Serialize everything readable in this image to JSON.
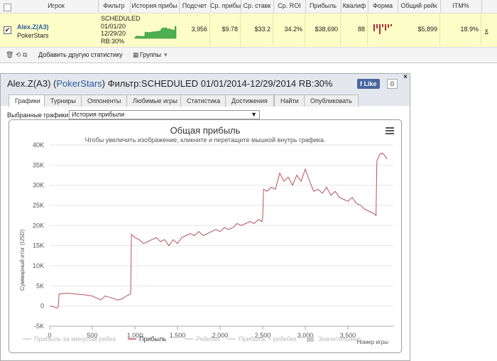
{
  "table": {
    "columns": [
      "Игрок",
      "Фильтр",
      "История прибы",
      "Подсчет",
      "Ср. прибы",
      "Ср. ставк",
      "Ср. ROI",
      "Прибыль",
      "Квалиф",
      "Форма",
      "Общий рейк",
      "ITM%"
    ],
    "row": {
      "player": "Alex.Z(A3)",
      "site": "PokerStars",
      "filter": [
        "SCHEDULED",
        "01/01/20",
        "12/29/20",
        "RB:30%"
      ],
      "count": "3,956",
      "avg_profit": "$9.78",
      "avg_stake": "$33.2",
      "roi": "34.2%",
      "profit": "$38,690",
      "qualified": "88",
      "total_rake": "$5,899",
      "itm": "18.9%",
      "close": "x"
    },
    "toolbar": {
      "add": "Добавить другую статистику",
      "groups": "Группы"
    }
  },
  "panel": {
    "player": "Alex.Z(A3)",
    "site": "PokerStars",
    "filter": "Фильтр:SCHEDULED 01/01/2014-12/29/2014 RB:30%",
    "like": "Like",
    "like_count": "0",
    "tabs": [
      "Графики",
      "Турниры",
      "Оппоненты",
      "Любимые игры",
      "Статистика",
      "Достижения",
      "Найти",
      "Опубликовать"
    ],
    "selector_label": "Выбранные графики:",
    "selector_value": "История прибыли"
  },
  "chart_data": {
    "type": "line",
    "title": "Общая прибыль",
    "subtitle": "Чтобы увеличить изображение, кликните и перетащите мышкой внутрь графика.",
    "y_label": "Суммарный итог (USD)",
    "x_label": "Номер игры",
    "x": [
      0,
      50,
      80,
      100,
      110,
      200,
      300,
      400,
      500,
      550,
      600,
      650,
      700,
      800,
      850,
      900,
      950,
      960,
      1000,
      1050,
      1100,
      1150,
      1200,
      1250,
      1300,
      1350,
      1400,
      1450,
      1500,
      1550,
      1600,
      1650,
      1700,
      1750,
      1800,
      1850,
      1900,
      1950,
      2000,
      2050,
      2100,
      2150,
      2200,
      2250,
      2300,
      2350,
      2400,
      2450,
      2490,
      2500,
      2510,
      2550,
      2600,
      2650,
      2700,
      2750,
      2800,
      2850,
      2900,
      2950,
      3000,
      3050,
      3100,
      3150,
      3200,
      3250,
      3300,
      3350,
      3400,
      3450,
      3500,
      3550,
      3600,
      3650,
      3700,
      3750,
      3800,
      3830,
      3840,
      3870,
      3900,
      3930,
      3956
    ],
    "series": [
      {
        "name": "Прибыль",
        "color": "#b5525a",
        "values": [
          0,
          -200,
          -500,
          -300,
          3000,
          3200,
          3000,
          2800,
          2500,
          2000,
          1500,
          2500,
          2200,
          1500,
          1800,
          2500,
          3000,
          17800,
          17000,
          16500,
          15500,
          16000,
          16500,
          17000,
          16000,
          16500,
          15000,
          16500,
          15500,
          17000,
          17500,
          18000,
          17500,
          18500,
          17500,
          18000,
          18500,
          19000,
          18500,
          19500,
          19000,
          19500,
          20500,
          20000,
          20500,
          21000,
          20500,
          21500,
          21000,
          22000,
          29000,
          28500,
          29500,
          29000,
          33000,
          31000,
          32000,
          30000,
          32500,
          31000,
          34000,
          31000,
          28500,
          29000,
          28000,
          29500,
          27500,
          28500,
          27000,
          26500,
          26000,
          27000,
          25500,
          25000,
          24000,
          23500,
          23000,
          22500,
          36000,
          37500,
          38000,
          37500,
          36500
        ]
      }
    ],
    "legend_items": [
      "Прибыль за минусом рейка",
      "Рейкбек",
      "Прибыль + рейкбек",
      "Значительные"
    ],
    "xlim": [
      0,
      3956
    ],
    "xticks": [
      0,
      500,
      {
        "value": 1000,
        "label": "1,000"
      },
      {
        "value": 1500,
        "label": "1,500"
      },
      {
        "value": 2000,
        "label": "2,000"
      },
      {
        "value": 2500,
        "label": "2,500"
      },
      {
        "value": 3000,
        "label": "3,000"
      },
      {
        "value": 3500,
        "label": "3,500"
      }
    ],
    "ylim": [
      -5000,
      40000
    ],
    "yticks": [
      {
        "value": -5000,
        "label": "-5K"
      },
      0,
      {
        "value": 5000,
        "label": "5K"
      },
      {
        "value": 10000,
        "label": "10K"
      },
      {
        "value": 15000,
        "label": "15K"
      },
      {
        "value": 20000,
        "label": "20K"
      },
      {
        "value": 25000,
        "label": "25K"
      },
      {
        "value": 30000,
        "label": "30K"
      },
      {
        "value": 35000,
        "label": "35K"
      },
      {
        "value": 40000,
        "label": "40K"
      }
    ],
    "grid": true
  }
}
